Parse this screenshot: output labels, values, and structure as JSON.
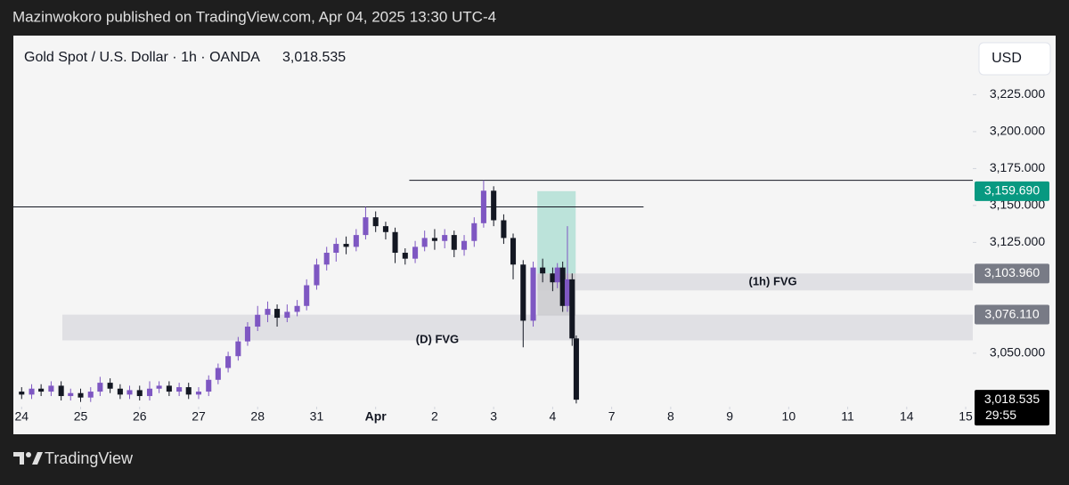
{
  "header": {
    "text": "Mazinwokoro published on TradingView.com, Apr 04, 2025 13:30 UTC-4"
  },
  "footer": {
    "brand": "TradingView"
  },
  "chart_data": {
    "type": "candlestick",
    "title": "Gold Spot / U.S. Dollar · 1h · OANDA",
    "last_price": "3,018.535",
    "currency": "USD",
    "countdown": "29:55",
    "up_color": "#7e57c2",
    "down_color": "#131722",
    "xlim": [
      -0.14,
      16.12
    ],
    "ylim": [
      3015,
      3265
    ],
    "xticks": [
      {
        "value": 0,
        "label": "24"
      },
      {
        "value": 1,
        "label": "25"
      },
      {
        "value": 2,
        "label": "26"
      },
      {
        "value": 3,
        "label": "27"
      },
      {
        "value": 4,
        "label": "28"
      },
      {
        "value": 5,
        "label": "31"
      },
      {
        "value": 6,
        "label": "Apr"
      },
      {
        "value": 7,
        "label": "2"
      },
      {
        "value": 8,
        "label": "3"
      },
      {
        "value": 9,
        "label": "4"
      },
      {
        "value": 10,
        "label": "7"
      },
      {
        "value": 11,
        "label": "8"
      },
      {
        "value": 12,
        "label": "9"
      },
      {
        "value": 13,
        "label": "10"
      },
      {
        "value": 14,
        "label": "11"
      },
      {
        "value": 15,
        "label": "14"
      },
      {
        "value": 16,
        "label": "15"
      }
    ],
    "yticks": [
      {
        "value": 3225,
        "label": "3,225.000"
      },
      {
        "value": 3200,
        "label": "3,200.000"
      },
      {
        "value": 3175,
        "label": "3,175.000"
      },
      {
        "value": 3150,
        "label": "3,150.000"
      },
      {
        "value": 3125,
        "label": "3,125.000"
      },
      {
        "value": 3050,
        "label": "3,050.000"
      }
    ],
    "x": [
      0,
      0.17,
      0.33,
      0.5,
      0.67,
      0.83,
      1,
      1.17,
      1.33,
      1.5,
      1.67,
      1.83,
      2,
      2.17,
      2.33,
      2.5,
      2.67,
      2.83,
      3,
      3.17,
      3.33,
      3.5,
      3.67,
      3.83,
      4,
      4.17,
      4.33,
      4.5,
      4.67,
      4.83,
      5,
      5.17,
      5.33,
      5.5,
      5.67,
      5.83,
      6,
      6.17,
      6.33,
      6.5,
      6.67,
      6.83,
      7,
      7.17,
      7.33,
      7.5,
      7.67,
      7.83,
      8,
      8.17,
      8.33,
      8.5,
      8.67,
      8.83,
      9,
      9.08,
      9.17,
      9.25,
      9.33,
      9.4
    ],
    "open": [
      3024,
      3022,
      3026,
      3024,
      3028,
      3021,
      3023,
      3020,
      3024,
      3030,
      3026,
      3022,
      3025,
      3021,
      3026,
      3028,
      3024,
      3027,
      3022,
      3024,
      3032,
      3040,
      3048,
      3058,
      3068,
      3076,
      3080,
      3074,
      3078,
      3082,
      3096,
      3110,
      3118,
      3124,
      3122,
      3130,
      3142,
      3136,
      3132,
      3118,
      3114,
      3122,
      3128,
      3126,
      3130,
      3120,
      3126,
      3138,
      3160,
      3140,
      3128,
      3110,
      3072,
      3108,
      3104,
      3098,
      3108,
      3082,
      3100,
      3060
    ],
    "high": [
      3027,
      3029,
      3029,
      3031,
      3031,
      3026,
      3026,
      3027,
      3034,
      3033,
      3029,
      3028,
      3028,
      3031,
      3031,
      3031,
      3030,
      3030,
      3027,
      3035,
      3043,
      3051,
      3061,
      3071,
      3082,
      3085,
      3083,
      3083,
      3086,
      3100,
      3114,
      3122,
      3128,
      3129,
      3134,
      3149,
      3146,
      3139,
      3135,
      3121,
      3126,
      3133,
      3134,
      3134,
      3133,
      3130,
      3142,
      3167,
      3163,
      3144,
      3131,
      3113,
      3112,
      3114,
      3108,
      3111,
      3112,
      3136,
      3104,
      3062
    ],
    "low": [
      3019,
      3019,
      3021,
      3021,
      3018,
      3018,
      3017,
      3017,
      3021,
      3023,
      3019,
      3019,
      3018,
      3018,
      3023,
      3021,
      3021,
      3019,
      3019,
      3021,
      3029,
      3037,
      3045,
      3055,
      3065,
      3071,
      3068,
      3071,
      3075,
      3079,
      3093,
      3106,
      3112,
      3117,
      3119,
      3127,
      3132,
      3127,
      3111,
      3110,
      3111,
      3119,
      3120,
      3121,
      3115,
      3116,
      3122,
      3135,
      3136,
      3124,
      3100,
      3054,
      3068,
      3098,
      3092,
      3094,
      3078,
      3078,
      3055,
      3016
    ],
    "close": [
      3022,
      3026,
      3024,
      3028,
      3021,
      3023,
      3020,
      3024,
      3030,
      3026,
      3022,
      3025,
      3021,
      3026,
      3028,
      3024,
      3027,
      3022,
      3024,
      3032,
      3040,
      3048,
      3058,
      3068,
      3076,
      3080,
      3074,
      3078,
      3082,
      3096,
      3110,
      3118,
      3124,
      3122,
      3130,
      3142,
      3136,
      3132,
      3118,
      3114,
      3122,
      3128,
      3126,
      3130,
      3120,
      3126,
      3138,
      3160,
      3140,
      3128,
      3110,
      3072,
      3108,
      3104,
      3098,
      3108,
      3082,
      3100,
      3060,
      3018.535
    ],
    "levels": [
      {
        "y": 3149,
        "x": [
          -0.14,
          10.54
        ]
      },
      {
        "y": 3167,
        "x": [
          6.57,
          16.12
        ]
      }
    ],
    "zones": [
      {
        "label": "(D) FVG",
        "y": [
          3076.11,
          3058.7
        ],
        "x": [
          0.69,
          16.12
        ],
        "color": "#dcdce0"
      },
      {
        "label": "(1h) FVG",
        "y": [
          3103.96,
          3092.5
        ],
        "x": [
          8.74,
          16.12
        ],
        "color": "#dcdce0"
      },
      {
        "y": [
          3159.69,
          3103.96
        ],
        "x": [
          8.74,
          9.39
        ],
        "color": "#b2dfd5"
      },
      {
        "y": [
          3103.96,
          3075.5
        ],
        "x": [
          8.74,
          9.39
        ],
        "color": "#c9c9cd"
      }
    ],
    "price_labels": [
      {
        "value": 3159.69,
        "label": "3,159.690",
        "color": "#089981"
      },
      {
        "value": 3103.96,
        "label": "3,103.960",
        "color": "#787b86"
      },
      {
        "value": 3076.11,
        "label": "3,076.110",
        "color": "#787b86"
      },
      {
        "value": 3018.535,
        "label": "3,018.535",
        "color": "#000000"
      }
    ]
  }
}
